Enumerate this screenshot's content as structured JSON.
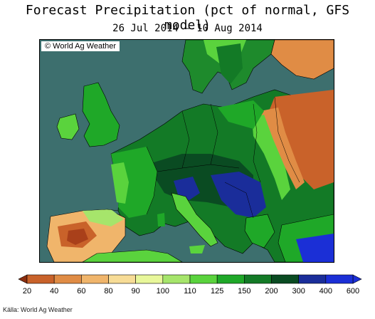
{
  "title": "Forecast Precipitation (pct of normal, GFS model)",
  "subtitle": "26 Jul 2014 — 10 Aug 2014",
  "map_credit": "© World Ag Weather",
  "source": "Källa: World Ag Weather",
  "colors": {
    "sea": "#3d6f6e",
    "border": "#000000"
  },
  "legend": {
    "min_color": "#8b2e0f",
    "max_color": "#1b2fd6",
    "bins": [
      {
        "label": "20",
        "color": "#a9401a"
      },
      {
        "label": "40",
        "color": "#c9622a"
      },
      {
        "label": "60",
        "color": "#e08c45"
      },
      {
        "label": "80",
        "color": "#f0b56b"
      },
      {
        "label": "90",
        "color": "#f7dc96"
      },
      {
        "label": "100",
        "color": "#e8f79a"
      },
      {
        "label": "110",
        "color": "#a6e56b"
      },
      {
        "label": "125",
        "color": "#5ad33d"
      },
      {
        "label": "150",
        "color": "#1fa828"
      },
      {
        "label": "200",
        "color": "#137a26"
      },
      {
        "label": "300",
        "color": "#0a4b22"
      },
      {
        "label": "400",
        "color": "#1a2d9a"
      },
      {
        "label": "600",
        "color": "#1b2fd6"
      }
    ]
  }
}
